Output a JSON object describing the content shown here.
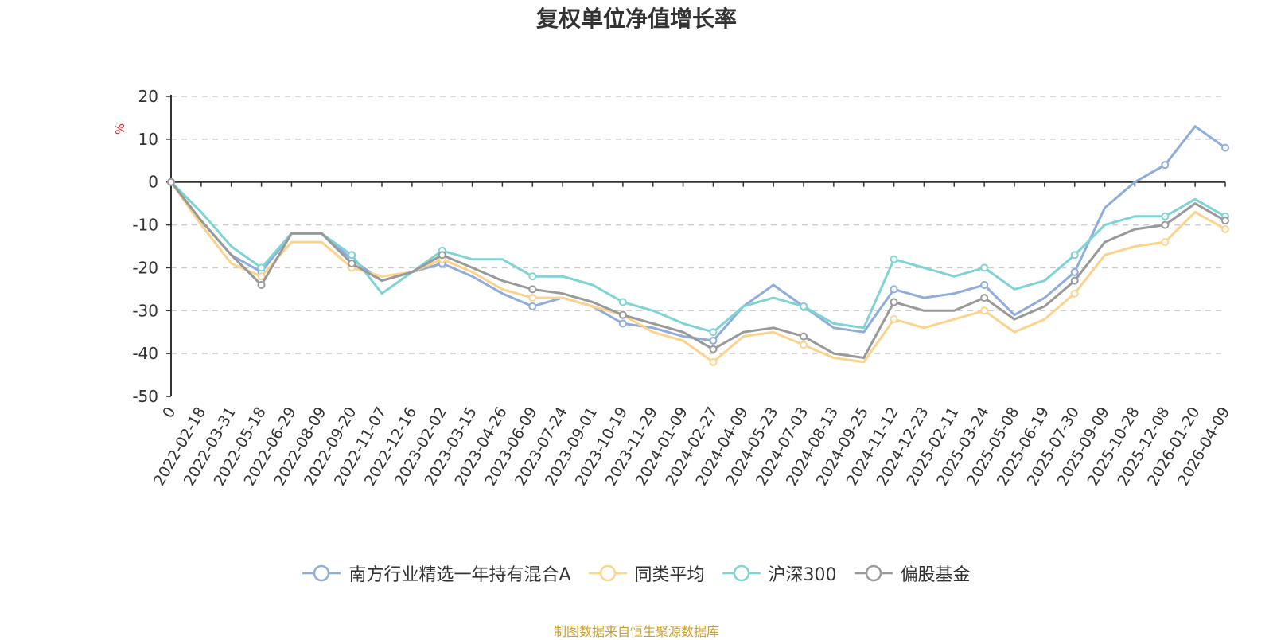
{
  "chart_data": {
    "type": "line",
    "title": "复权单位净值增长率",
    "ylabel": "%",
    "xlabel": "",
    "ylim": [
      -50,
      20
    ],
    "yticks": [
      20,
      10,
      0,
      -10,
      -20,
      -30,
      -40,
      -50
    ],
    "grid": true,
    "legend_position": "bottom",
    "x": [
      "0",
      "2022-02-18",
      "2022-03-31",
      "2022-05-18",
      "2022-06-29",
      "2022-08-09",
      "2022-09-20",
      "2022-11-07",
      "2022-12-16",
      "2023-02-02",
      "2023-03-15",
      "2023-04-26",
      "2023-06-09",
      "2023-07-24",
      "2023-09-01",
      "2023-10-19",
      "2023-11-29",
      "2024-01-09",
      "2024-02-27",
      "2024-04-09",
      "2024-05-23",
      "2024-07-03",
      "2024-08-13",
      "2024-09-25",
      "2024-11-12",
      "2024-12-23",
      "2025-02-11",
      "2025-03-24",
      "2025-05-08",
      "2025-06-19",
      "2025-07-30",
      "2025-09-09",
      "2025-10-28",
      "2025-12-08",
      "2026-01-20",
      "2026-04-09"
    ],
    "series": [
      {
        "name": "南方行业精选一年持有混合A",
        "color": "#8eacdc",
        "values": [
          0,
          -9,
          -17,
          -21,
          -12,
          -12,
          -18,
          -23,
          -21,
          -19,
          -22,
          -26,
          -29,
          -27,
          -29,
          -33,
          -34,
          -36,
          -37,
          -29,
          -24,
          -29,
          -34,
          -35,
          -25,
          -27,
          -26,
          -24,
          -31,
          -27,
          -21,
          -6,
          0,
          4,
          13,
          8
        ]
      },
      {
        "name": "同类平均",
        "color": "#fcd38c",
        "values": [
          0,
          -10,
          -19,
          -22,
          -14,
          -14,
          -20,
          -22,
          -21,
          -18,
          -21,
          -25,
          -27,
          -27,
          -29,
          -31,
          -35,
          -37,
          -42,
          -36,
          -35,
          -38,
          -41,
          -42,
          -32,
          -34,
          -32,
          -30,
          -35,
          -32,
          -26,
          -17,
          -15,
          -14,
          -7,
          -11
        ]
      },
      {
        "name": "沪深300",
        "color": "#7fd3d3",
        "values": [
          0,
          -7,
          -15,
          -20,
          -12,
          -12,
          -17,
          -26,
          -21,
          -16,
          -18,
          -18,
          -22,
          -22,
          -24,
          -28,
          -30,
          -33,
          -35,
          -29,
          -27,
          -29,
          -33,
          -34,
          -18,
          -20,
          -22,
          -20,
          -25,
          -23,
          -17,
          -10,
          -8,
          -8,
          -4,
          -8
        ]
      },
      {
        "name": "偏股基金",
        "color": "#999999",
        "values": [
          0,
          -9,
          -17,
          -24,
          -12,
          -12,
          -19,
          -23,
          -21,
          -17,
          -20,
          -23,
          -25,
          -26,
          -28,
          -31,
          -33,
          -35,
          -39,
          -35,
          -34,
          -36,
          -40,
          -41,
          -28,
          -30,
          -30,
          -27,
          -32,
          -29,
          -23,
          -14,
          -11,
          -10,
          -5,
          -9
        ]
      }
    ]
  },
  "source": "制图数据来自恒生聚源数据库"
}
